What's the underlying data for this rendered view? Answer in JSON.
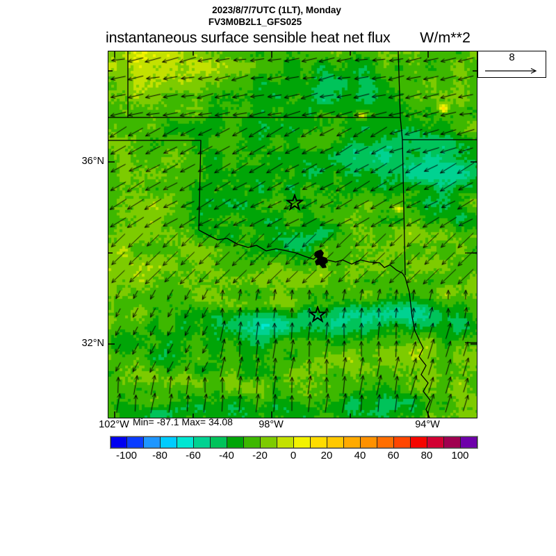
{
  "header": {
    "datetime_line": "2023/8/7/7UTC (1LT), Monday",
    "model_line": "FV3M0B2L1_GFS025",
    "title": "instantaneous surface sensible heat net flux",
    "units": "W/m**2"
  },
  "map": {
    "lat_labels": [
      "36°N",
      "32°N"
    ],
    "lon_labels": [
      "102°W",
      "98°W",
      "94°W"
    ]
  },
  "stats": {
    "min_max": "Min= -87.1 Max= 34.08"
  },
  "vector_legend": {
    "reference_value": "8"
  },
  "colorbar": {
    "tick_labels": [
      "-100",
      "-80",
      "-60",
      "-40",
      "-20",
      "0",
      "20",
      "40",
      "60",
      "80",
      "100"
    ],
    "colors": [
      "#0000F0",
      "#0A3CFF",
      "#1E96FF",
      "#00CCFF",
      "#00E6D2",
      "#00D291",
      "#00C35A",
      "#00A507",
      "#3DB800",
      "#7DCB00",
      "#C3E100",
      "#F2F200",
      "#FFDC00",
      "#FFC800",
      "#FFAA00",
      "#FF9100",
      "#FF6E00",
      "#FF4600",
      "#F50500",
      "#D20032",
      "#A00050",
      "#6E00AA"
    ],
    "min_level": -110,
    "max_level": 110,
    "step": 10
  },
  "chart_data": {
    "type": "heatmap",
    "title": "instantaneous surface sensible heat net flux",
    "units": "W/m**2",
    "valid_time": "2023/8/7/7UTC (1LT), Monday",
    "model_run": "FV3M0B2L1_GFS025",
    "field_min": -87.1,
    "field_max": 34.08,
    "wind_vector_reference": 8,
    "lat_tick_labels": [
      "36°N",
      "32°N"
    ],
    "lon_tick_labels": [
      "102°W",
      "98°W",
      "94°W"
    ],
    "colorbar_tick_values": [
      -100,
      -80,
      -60,
      -40,
      -20,
      0,
      20,
      40,
      60,
      80,
      100
    ],
    "colorbar_levels_range": [
      -110,
      110
    ],
    "colorbar_level_step": 10,
    "field_summary": "Mostly -10 to -40 W/m**2 (greens) over Oklahoma/Kansas/north Texas at night; cyan pools of -50 to -75 over NE Oklahoma and along ~31.5N in Texas; yellow ridges near 0 along the Red River valley, SE of it, and in the panhandle; winds NE-erly ~8 over Oklahoma turning S-erly over Texas"
  }
}
